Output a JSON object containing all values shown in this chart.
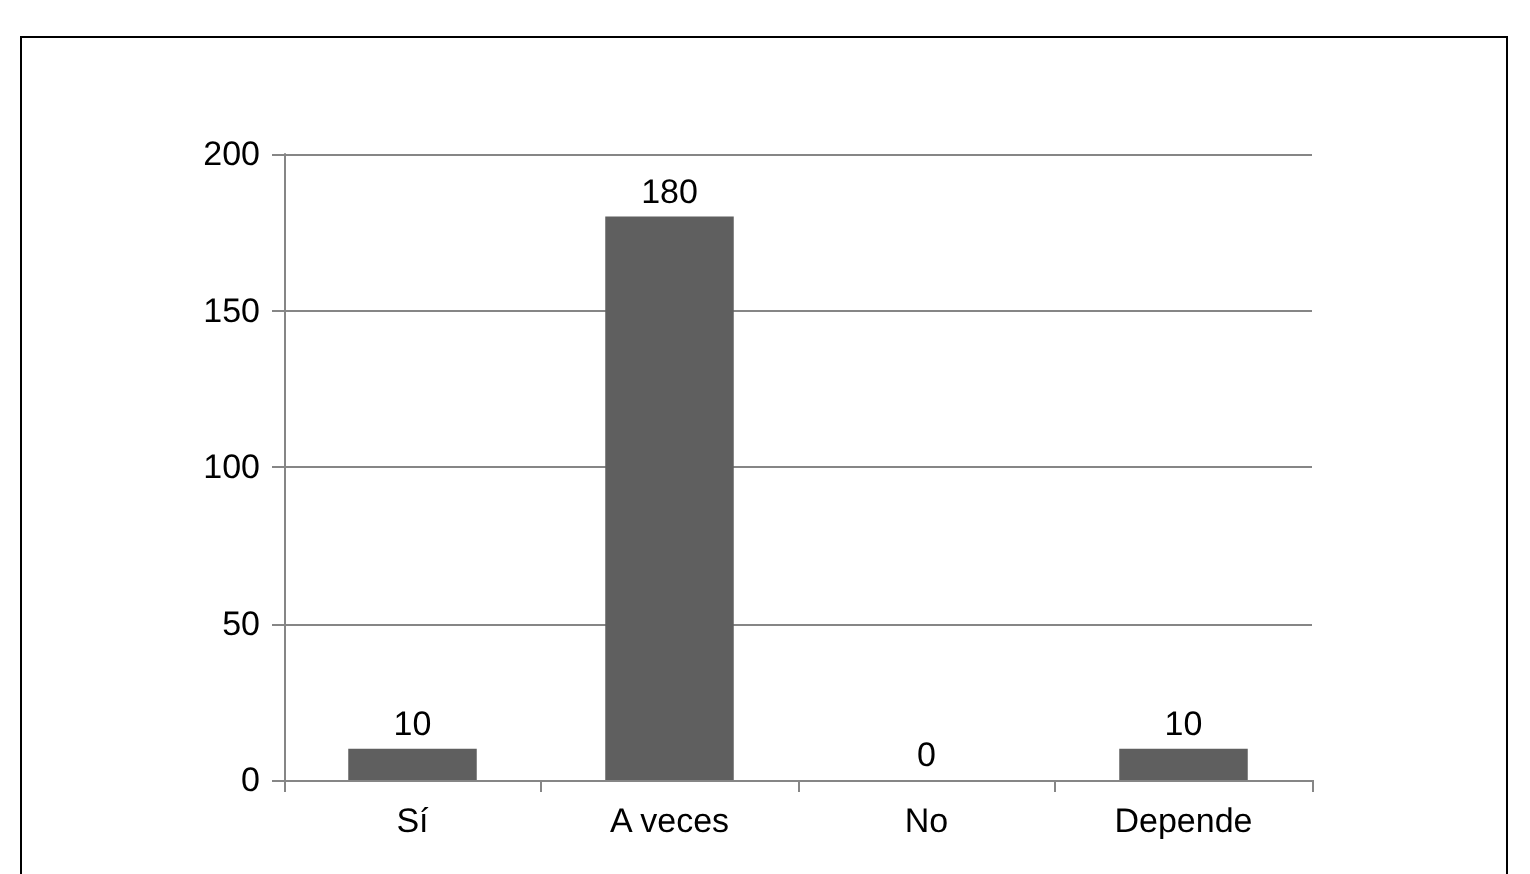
{
  "chart_data": {
    "type": "bar",
    "categories": [
      "Sí",
      "A veces",
      "No",
      "Depende"
    ],
    "values": [
      10,
      180,
      0,
      10
    ],
    "color": "#5f5f5f",
    "ylim": [
      0,
      200
    ],
    "yticks": [
      0,
      50,
      100,
      150,
      200
    ],
    "grid": "y",
    "data_labels": true
  }
}
